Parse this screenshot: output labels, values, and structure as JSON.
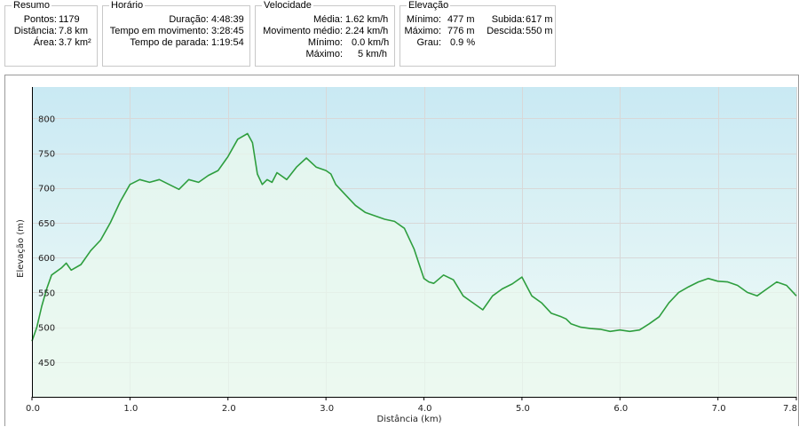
{
  "summary": {
    "title": "Resumo",
    "rows": [
      {
        "label": "Pontos:",
        "value": "1179"
      },
      {
        "label": "Distância:",
        "value": "7.8 km"
      },
      {
        "label": "Área:",
        "value": "3.7 km²"
      }
    ]
  },
  "schedule": {
    "title": "Horário",
    "rows": [
      {
        "label": "Duração:",
        "value": "4:48:39"
      },
      {
        "label": "Tempo em movimento:",
        "value": "3:28:45"
      },
      {
        "label": "Tempo de parada:",
        "value": "1:19:54"
      }
    ]
  },
  "speed": {
    "title": "Velocidade",
    "rows": [
      {
        "label": "Média:",
        "value": "1.62 km/h"
      },
      {
        "label": "Movimento médio:",
        "value": "2.24 km/h"
      },
      {
        "label": "Mínimo:",
        "value": "0.0 km/h"
      },
      {
        "label": "Máximo:",
        "value": "5 km/h"
      }
    ]
  },
  "elevation": {
    "title": "Elevação",
    "rows_left": [
      {
        "label": "Mínimo:",
        "value": "477 m"
      },
      {
        "label": "Máximo:",
        "value": "776 m"
      },
      {
        "label": "Grau:",
        "value": "0.9 %"
      }
    ],
    "rows_right": [
      {
        "label": "Subida:",
        "value": "617 m"
      },
      {
        "label": "Descida:",
        "value": "550 m"
      }
    ]
  },
  "chart_data": {
    "type": "area",
    "xlabel": "Distância  (km)",
    "ylabel": "Elevação (m)",
    "xlim": [
      0,
      7.8
    ],
    "ylim": [
      400,
      845
    ],
    "x_ticks": [
      0.0,
      1.0,
      2.0,
      3.0,
      4.0,
      5.0,
      6.0,
      7.0,
      7.8
    ],
    "x_tick_labels": [
      "0.0",
      "1.0",
      "2.0",
      "3.0",
      "4.0",
      "5.0",
      "6.0",
      "7.0",
      "7.8"
    ],
    "y_ticks": [
      450,
      500,
      550,
      600,
      650,
      700,
      750,
      800
    ],
    "y_tick_labels": [
      "450",
      "500",
      "550",
      "600",
      "650",
      "700",
      "750",
      "800"
    ],
    "grid": true,
    "colors": {
      "line": "#2e9e3e",
      "fill_top": "#c9e9f3",
      "fill_bottom": "#f3fcf7",
      "grid": "#d8d8d8"
    },
    "x": [
      0.0,
      0.05,
      0.1,
      0.15,
      0.2,
      0.3,
      0.35,
      0.4,
      0.5,
      0.6,
      0.7,
      0.8,
      0.9,
      1.0,
      1.1,
      1.2,
      1.3,
      1.4,
      1.5,
      1.6,
      1.7,
      1.8,
      1.9,
      2.0,
      2.1,
      2.2,
      2.25,
      2.3,
      2.35,
      2.4,
      2.45,
      2.5,
      2.6,
      2.7,
      2.8,
      2.9,
      3.0,
      3.05,
      3.1,
      3.2,
      3.3,
      3.4,
      3.5,
      3.6,
      3.7,
      3.8,
      3.9,
      4.0,
      4.05,
      4.1,
      4.2,
      4.3,
      4.4,
      4.5,
      4.6,
      4.7,
      4.8,
      4.9,
      5.0,
      5.1,
      5.2,
      5.3,
      5.4,
      5.45,
      5.5,
      5.6,
      5.7,
      5.8,
      5.9,
      6.0,
      6.1,
      6.2,
      6.3,
      6.4,
      6.5,
      6.6,
      6.7,
      6.8,
      6.9,
      7.0,
      7.1,
      7.2,
      7.3,
      7.4,
      7.5,
      7.6,
      7.7,
      7.8
    ],
    "y": [
      480,
      500,
      530,
      555,
      575,
      585,
      592,
      582,
      590,
      610,
      625,
      650,
      680,
      705,
      712,
      708,
      712,
      705,
      698,
      712,
      708,
      718,
      725,
      745,
      770,
      778,
      765,
      720,
      705,
      712,
      708,
      722,
      712,
      730,
      743,
      730,
      725,
      720,
      705,
      690,
      675,
      665,
      660,
      655,
      652,
      642,
      612,
      570,
      565,
      563,
      575,
      568,
      545,
      535,
      525,
      545,
      555,
      562,
      572,
      545,
      535,
      520,
      515,
      512,
      505,
      500,
      498,
      497,
      494,
      496,
      494,
      496,
      505,
      515,
      535,
      550,
      558,
      565,
      570,
      566,
      565,
      560,
      550,
      545,
      555,
      565,
      560,
      545
    ]
  }
}
